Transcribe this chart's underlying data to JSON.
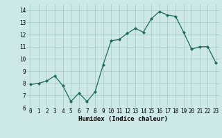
{
  "x": [
    0,
    1,
    2,
    3,
    4,
    5,
    6,
    7,
    8,
    9,
    10,
    11,
    12,
    13,
    14,
    15,
    16,
    17,
    18,
    19,
    20,
    21,
    22,
    23
  ],
  "y": [
    7.9,
    8.0,
    8.2,
    8.6,
    7.8,
    6.5,
    7.2,
    6.5,
    7.3,
    9.5,
    11.5,
    11.6,
    12.1,
    12.5,
    12.2,
    13.3,
    13.9,
    13.6,
    13.5,
    12.2,
    10.8,
    11.0,
    11.0,
    9.7
  ],
  "xlabel": "Humidex (Indice chaleur)",
  "xlim": [
    -0.5,
    23.5
  ],
  "ylim": [
    6,
    14.5
  ],
  "yticks": [
    6,
    7,
    8,
    9,
    10,
    11,
    12,
    13,
    14
  ],
  "xticks": [
    0,
    1,
    2,
    3,
    4,
    5,
    6,
    7,
    8,
    9,
    10,
    11,
    12,
    13,
    14,
    15,
    16,
    17,
    18,
    19,
    20,
    21,
    22,
    23
  ],
  "line_color": "#1a6b5a",
  "bg_color": "#cce8e8",
  "grid_color": "#aacccc",
  "tick_fontsize": 5.5,
  "xlabel_fontsize": 6.5
}
